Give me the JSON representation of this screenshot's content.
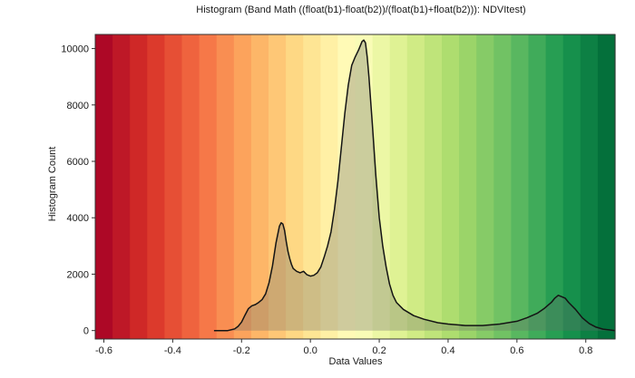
{
  "chart_data": {
    "type": "area",
    "title": "Histogram (Band Math ((float(b1)-float(b2))/(float(b1)+float(b2))): NDVItest)",
    "xlabel": "Data Values",
    "ylabel": "Histogram Count",
    "xlim": [
      -0.625,
      0.885
    ],
    "ylim": [
      -300,
      10500
    ],
    "x_ticks": [
      -0.6,
      -0.4,
      -0.2,
      0.0,
      0.2,
      0.4,
      0.6,
      0.8
    ],
    "x_tick_labels": [
      "-0.6",
      "-0.4",
      "-0.2",
      "0.0",
      "0.2",
      "0.4",
      "0.6",
      "0.8"
    ],
    "y_ticks": [
      0,
      2000,
      4000,
      6000,
      8000,
      10000
    ],
    "y_tick_labels": [
      "0",
      "2000",
      "4000",
      "6000",
      "8000",
      "10000"
    ],
    "background_colormap": "RdYlGn",
    "grid": false,
    "series": [
      {
        "x": [
          -0.28,
          -0.24,
          -0.22,
          -0.21,
          -0.2,
          -0.19,
          -0.18,
          -0.17,
          -0.16,
          -0.15,
          -0.14,
          -0.13,
          -0.12,
          -0.11,
          -0.1,
          -0.09,
          -0.085,
          -0.08,
          -0.075,
          -0.07,
          -0.065,
          -0.06,
          -0.055,
          -0.05,
          -0.04,
          -0.03,
          -0.02,
          -0.01,
          0.0,
          0.01,
          0.02,
          0.03,
          0.04,
          0.05,
          0.06,
          0.07,
          0.08,
          0.09,
          0.1,
          0.11,
          0.12,
          0.13,
          0.14,
          0.15,
          0.155,
          0.16,
          0.165,
          0.17,
          0.18,
          0.19,
          0.2,
          0.21,
          0.22,
          0.23,
          0.24,
          0.25,
          0.27,
          0.3,
          0.33,
          0.37,
          0.4,
          0.45,
          0.5,
          0.55,
          0.6,
          0.63,
          0.66,
          0.68,
          0.7,
          0.71,
          0.72,
          0.73,
          0.74,
          0.75,
          0.77,
          0.79,
          0.81,
          0.83,
          0.85,
          0.87,
          0.885
        ],
        "y": [
          0,
          0,
          60,
          150,
          300,
          550,
          780,
          880,
          920,
          1000,
          1100,
          1300,
          1700,
          2300,
          3100,
          3700,
          3820,
          3780,
          3550,
          3150,
          2800,
          2550,
          2350,
          2200,
          2100,
          2050,
          2100,
          1980,
          1930,
          1960,
          2050,
          2250,
          2600,
          3000,
          3500,
          4300,
          5300,
          6500,
          7700,
          8700,
          9400,
          9700,
          9950,
          10250,
          10300,
          10200,
          9700,
          9000,
          7300,
          5500,
          4000,
          3000,
          2250,
          1650,
          1250,
          1000,
          750,
          530,
          400,
          280,
          230,
          180,
          180,
          230,
          330,
          460,
          620,
          790,
          1000,
          1150,
          1250,
          1200,
          1150,
          1000,
          750,
          450,
          250,
          120,
          50,
          20,
          0
        ]
      }
    ]
  }
}
